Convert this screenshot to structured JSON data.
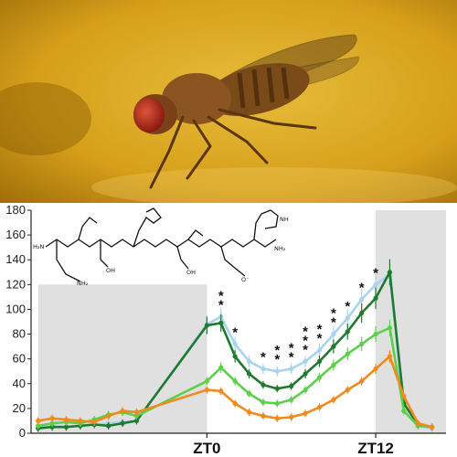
{
  "photo": {
    "subject": "fruit-fly",
    "background": "#d9a71c"
  },
  "chart_data": {
    "type": "line",
    "title": "",
    "xlabel": "",
    "ylabel": "",
    "ylim": [
      0,
      180
    ],
    "yticks": [
      0,
      20,
      40,
      60,
      80,
      100,
      120,
      140,
      160,
      180
    ],
    "x": [
      -12,
      -11,
      -10,
      -9,
      -8,
      -7,
      -6,
      -5,
      0,
      1,
      2,
      3,
      4,
      5,
      6,
      7,
      8,
      9,
      10,
      11,
      12,
      13,
      14,
      15,
      16
    ],
    "xtick_labels": [
      {
        "x": 0,
        "label": "ZT0"
      },
      {
        "x": 12,
        "label": "ZT12"
      }
    ],
    "dark_periods": [
      [
        -12,
        0
      ],
      [
        12,
        17
      ]
    ],
    "grid": false,
    "series": [
      {
        "color": "#a8d4ee",
        "values": [
          5,
          6,
          5,
          6,
          7,
          8,
          9,
          10,
          88,
          94,
          72,
          58,
          52,
          50,
          52,
          58,
          67,
          80,
          93,
          108,
          120,
          128,
          18,
          6,
          4
        ]
      },
      {
        "color": "#1f7a30",
        "values": [
          4,
          5,
          5,
          6,
          7,
          6,
          8,
          10,
          87,
          89,
          62,
          48,
          39,
          36,
          38,
          48,
          58,
          70,
          82,
          97,
          109,
          130,
          24,
          7,
          5
        ]
      },
      {
        "color": "#5cd04a",
        "values": [
          6,
          8,
          9,
          8,
          11,
          15,
          17,
          14,
          42,
          53,
          42,
          32,
          25,
          24,
          27,
          35,
          45,
          55,
          64,
          72,
          80,
          85,
          18,
          6,
          5
        ]
      },
      {
        "color": "#f08a1c",
        "values": [
          10,
          12,
          11,
          10,
          9,
          14,
          18,
          17,
          35,
          34,
          24,
          17,
          14,
          12,
          13,
          16,
          21,
          27,
          35,
          42,
          52,
          62,
          30,
          8,
          5
        ]
      }
    ],
    "annotations": [
      {
        "x": 1,
        "text": "**"
      },
      {
        "x": 2,
        "text": "*"
      },
      {
        "x": 4,
        "text": "*"
      },
      {
        "x": 5,
        "text": "**"
      },
      {
        "x": 6,
        "text": "**"
      },
      {
        "x": 7,
        "text": "***"
      },
      {
        "x": 8,
        "text": "**"
      },
      {
        "x": 9,
        "text": "**"
      },
      {
        "x": 10,
        "text": "*"
      },
      {
        "x": 11,
        "text": "*"
      },
      {
        "x": 12,
        "text": "*"
      }
    ],
    "inset": {
      "type": "chemical-structure",
      "labels": [
        "H₂N",
        "NH₂",
        "OH",
        "OH",
        "O⁻",
        "NH₂",
        "NH"
      ]
    }
  }
}
